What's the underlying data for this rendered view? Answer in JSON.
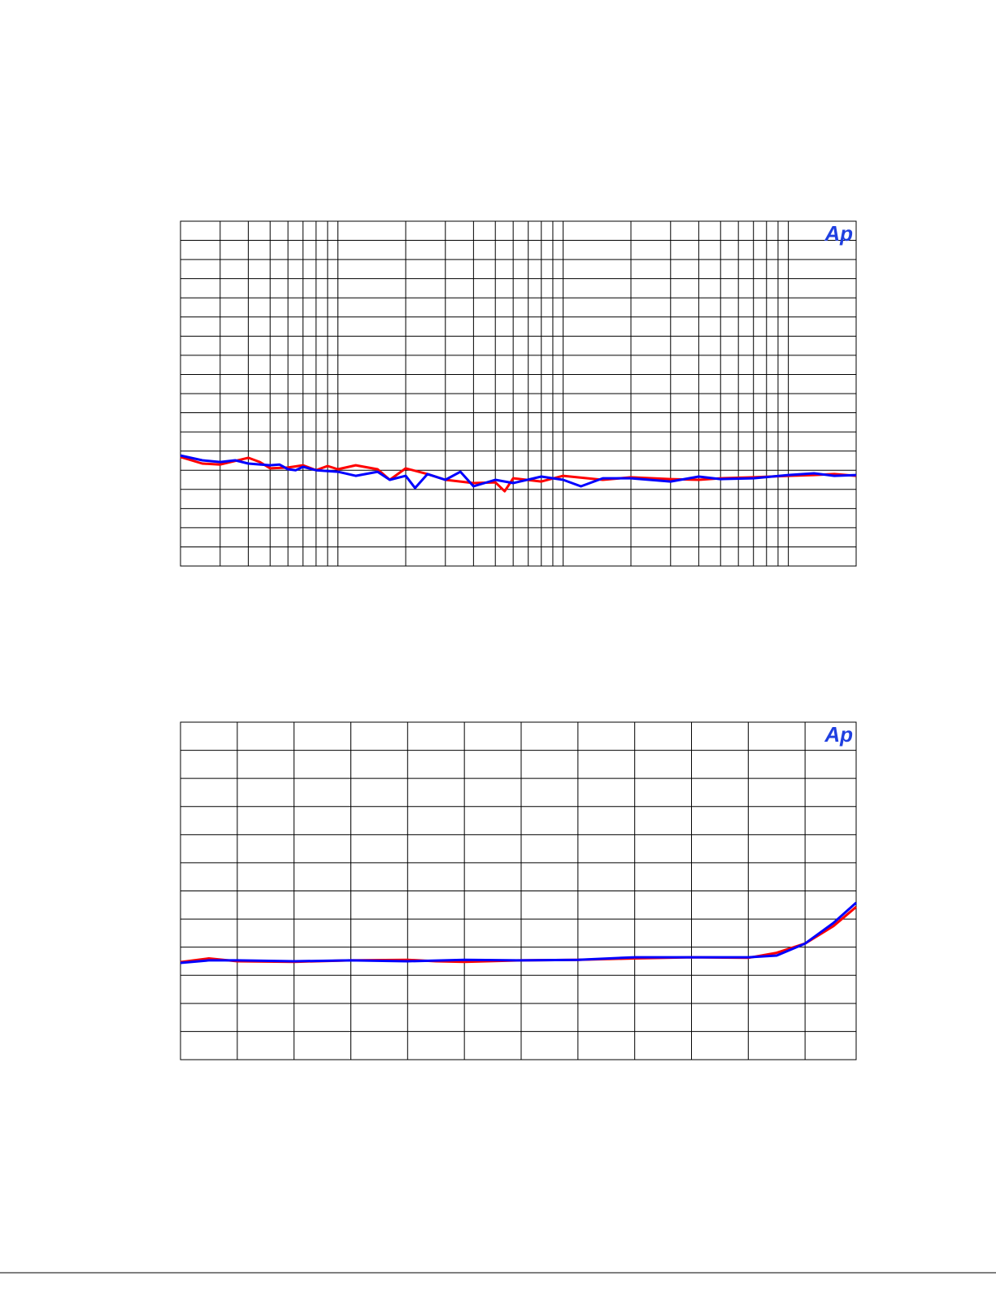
{
  "chart_data": [
    {
      "type": "line",
      "annotation": "Ap",
      "log_x": true,
      "grid": true,
      "xlim": [
        20,
        20000
      ],
      "ylim": [
        0,
        18
      ],
      "xticks": [
        20,
        30,
        40,
        50,
        60,
        70,
        80,
        90,
        100,
        200,
        300,
        400,
        500,
        600,
        700,
        800,
        900,
        1000,
        2000,
        3000,
        4000,
        5000,
        6000,
        7000,
        8000,
        9000,
        10000,
        20000
      ],
      "yticks": [
        0,
        1,
        2,
        3,
        4,
        5,
        6,
        7,
        8,
        9,
        10,
        11,
        12,
        13,
        14,
        15,
        16,
        17,
        18
      ],
      "series": [
        {
          "color": "#ff0000",
          "x": [
            20,
            25,
            30,
            40,
            45,
            50,
            60,
            70,
            80,
            90,
            100,
            120,
            150,
            170,
            200,
            250,
            300,
            400,
            500,
            550,
            600,
            800,
            1000,
            1500,
            2000,
            3000,
            4000,
            5000,
            7000,
            10000,
            13000,
            16000,
            20000
          ],
          "values": [
            5.69,
            5.35,
            5.3,
            5.65,
            5.43,
            5.1,
            5.14,
            5.26,
            5.0,
            5.22,
            5.05,
            5.26,
            5.05,
            4.5,
            5.1,
            4.8,
            4.5,
            4.33,
            4.37,
            3.9,
            4.58,
            4.41,
            4.71,
            4.5,
            4.63,
            4.54,
            4.5,
            4.58,
            4.63,
            4.71,
            4.75,
            4.8,
            4.71
          ]
        },
        {
          "color": "#0000ff",
          "x": [
            20,
            25,
            30,
            35,
            40,
            50,
            55,
            60,
            65,
            70,
            80,
            100,
            120,
            150,
            170,
            200,
            220,
            250,
            300,
            350,
            400,
            500,
            600,
            800,
            1000,
            1200,
            1500,
            2000,
            3000,
            4000,
            5000,
            7000,
            10000,
            13000,
            16000,
            20000
          ],
          "values": [
            5.77,
            5.52,
            5.43,
            5.52,
            5.35,
            5.26,
            5.3,
            5.05,
            5.0,
            5.18,
            5.0,
            4.92,
            4.71,
            4.92,
            4.5,
            4.71,
            4.07,
            4.8,
            4.5,
            4.92,
            4.16,
            4.5,
            4.33,
            4.67,
            4.5,
            4.16,
            4.58,
            4.58,
            4.41,
            4.67,
            4.54,
            4.58,
            4.75,
            4.84,
            4.71,
            4.75
          ]
        }
      ]
    },
    {
      "type": "line",
      "annotation": "Ap",
      "log_x": false,
      "grid": true,
      "xlim": [
        0,
        11.9
      ],
      "ylim": [
        0,
        12
      ],
      "xticks": [
        0,
        1,
        2,
        3,
        4,
        5,
        6,
        7,
        8,
        9,
        10,
        11
      ],
      "yticks": [
        0,
        1,
        2,
        3,
        4,
        5,
        6,
        7,
        8,
        9,
        10,
        11,
        12
      ],
      "series": [
        {
          "color": "#ff0000",
          "x": [
            0,
            0.5,
            1,
            2,
            3,
            4,
            4.5,
            5,
            6,
            7,
            8,
            9,
            10,
            10.5,
            11,
            11.5,
            11.9
          ],
          "values": [
            3.47,
            3.6,
            3.5,
            3.48,
            3.53,
            3.55,
            3.5,
            3.48,
            3.53,
            3.55,
            3.6,
            3.64,
            3.62,
            3.8,
            4.13,
            4.75,
            5.43
          ]
        },
        {
          "color": "#0000ff",
          "x": [
            0,
            0.5,
            1,
            2,
            3,
            4,
            5,
            6,
            7,
            8,
            9,
            10,
            10.5,
            11,
            11.5,
            11.9
          ],
          "values": [
            3.44,
            3.53,
            3.53,
            3.5,
            3.53,
            3.5,
            3.55,
            3.53,
            3.55,
            3.64,
            3.64,
            3.64,
            3.7,
            4.13,
            4.86,
            5.58
          ]
        }
      ]
    }
  ]
}
